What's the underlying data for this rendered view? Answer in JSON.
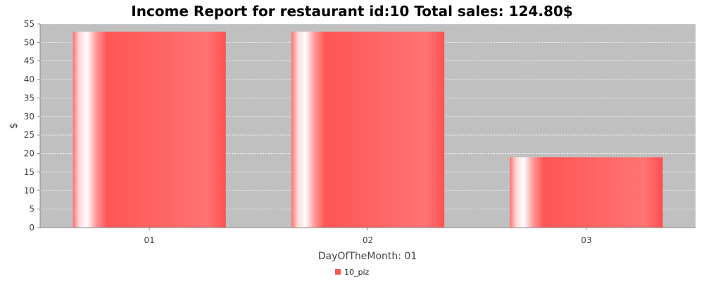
{
  "chart_data": {
    "type": "bar",
    "title": "Income Report for restaurant id:10 Total sales: 124.80$",
    "xlabel": "DayOfTheMonth: 01",
    "ylabel": "$",
    "categories": [
      "01",
      "02",
      "03"
    ],
    "series": [
      {
        "name": "10_piz",
        "values": [
          52.9,
          52.9,
          19.0
        ]
      }
    ],
    "ylim": [
      0,
      55
    ],
    "yticks": [
      0,
      5,
      10,
      15,
      20,
      25,
      30,
      35,
      40,
      45,
      50,
      55
    ],
    "grid": true,
    "legend_position": "bottom",
    "colors": {
      "series": "#ff5555",
      "plot_background": "#c0c0c0",
      "gridline": "#ffffff"
    }
  }
}
